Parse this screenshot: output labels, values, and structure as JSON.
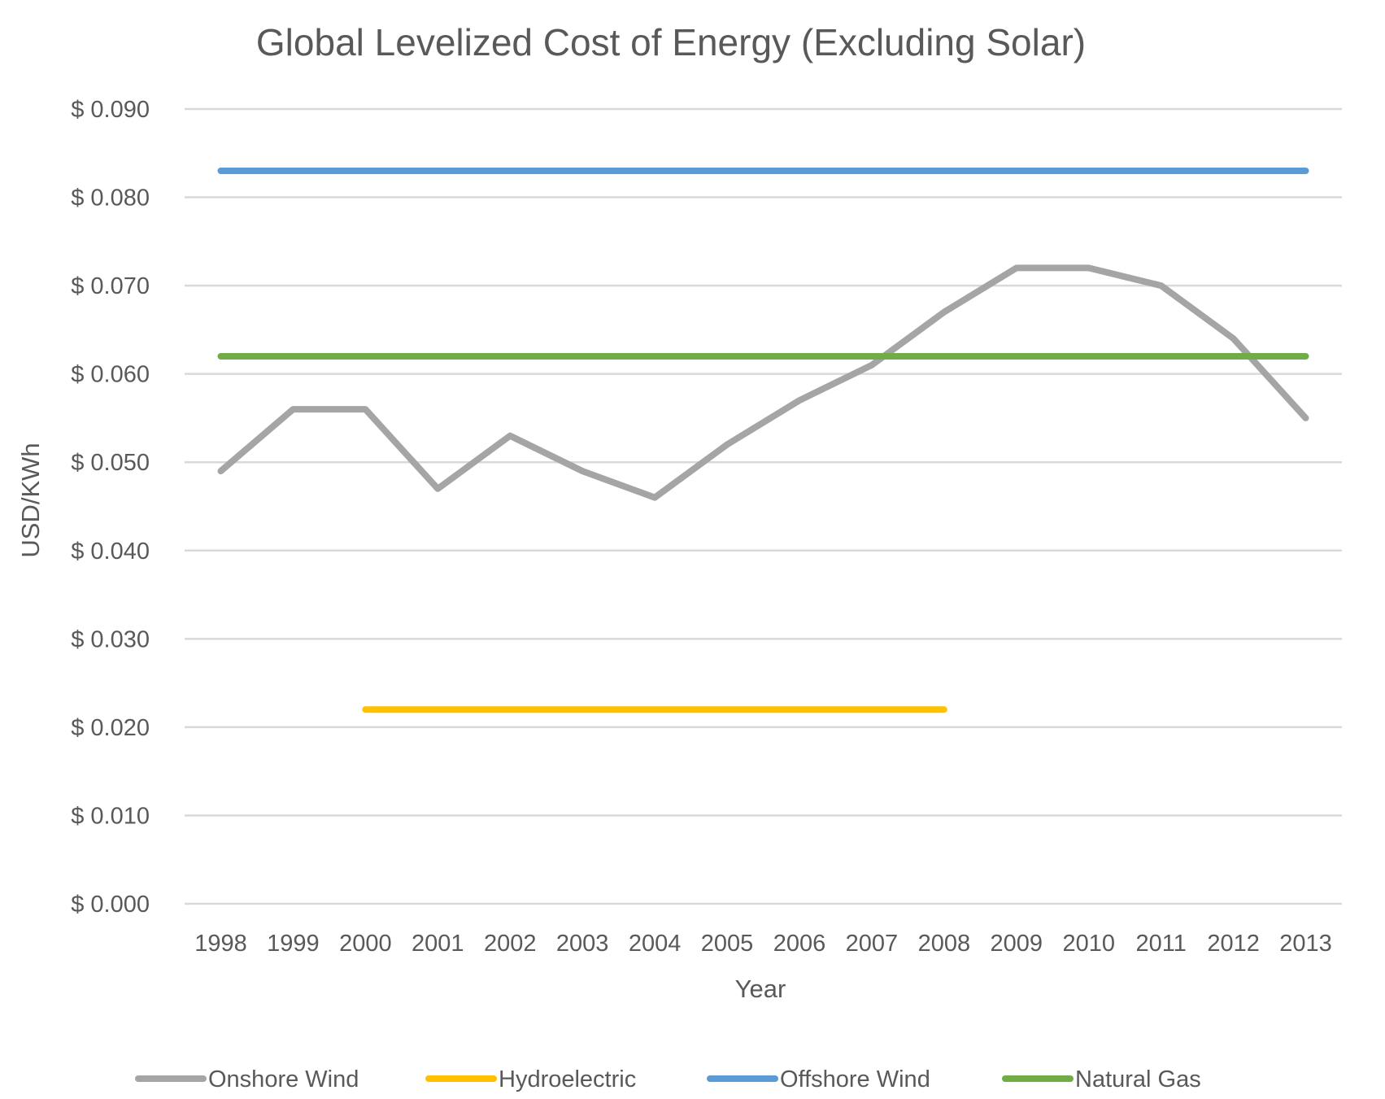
{
  "chart_data": {
    "type": "line",
    "title": "Global Levelized Cost of Energy (Excluding Solar)",
    "xlabel": "Year",
    "ylabel": "USD/KWh",
    "categories": [
      "1998",
      "1999",
      "2000",
      "2001",
      "2002",
      "2003",
      "2004",
      "2005",
      "2006",
      "2007",
      "2008",
      "2009",
      "2010",
      "2011",
      "2012",
      "2013"
    ],
    "ylim": [
      0,
      0.09
    ],
    "yticks": [
      0,
      0.01,
      0.02,
      0.03,
      0.04,
      0.05,
      0.06,
      0.07,
      0.08,
      0.09
    ],
    "ytick_labels": [
      "$ 0.000",
      "$ 0.010",
      "$ 0.020",
      "$ 0.030",
      "$ 0.040",
      "$ 0.050",
      "$ 0.060",
      "$ 0.070",
      "$ 0.080",
      "$ 0.090"
    ],
    "grid": true,
    "legend_position": "bottom",
    "series": [
      {
        "name": "Onshore Wind",
        "color": "#a5a5a5",
        "values": [
          0.049,
          0.056,
          0.056,
          0.047,
          0.053,
          0.049,
          0.046,
          0.052,
          0.057,
          0.061,
          0.067,
          0.072,
          0.072,
          0.07,
          0.064,
          0.055
        ]
      },
      {
        "name": "Hydroelectric",
        "color": "#ffc000",
        "values": [
          null,
          null,
          0.022,
          0.022,
          0.022,
          0.022,
          0.022,
          0.022,
          0.022,
          0.022,
          0.022,
          null,
          null,
          null,
          null,
          null
        ]
      },
      {
        "name": "Offshore Wind",
        "color": "#5b9bd5",
        "values": [
          0.083,
          0.083,
          0.083,
          0.083,
          0.083,
          0.083,
          0.083,
          0.083,
          0.083,
          0.083,
          0.083,
          0.083,
          0.083,
          0.083,
          0.083,
          0.083
        ]
      },
      {
        "name": "Natural Gas",
        "color": "#70ad47",
        "values": [
          0.062,
          0.062,
          0.062,
          0.062,
          0.062,
          0.062,
          0.062,
          0.062,
          0.062,
          0.062,
          0.062,
          0.062,
          0.062,
          0.062,
          0.062,
          0.062
        ]
      }
    ]
  }
}
